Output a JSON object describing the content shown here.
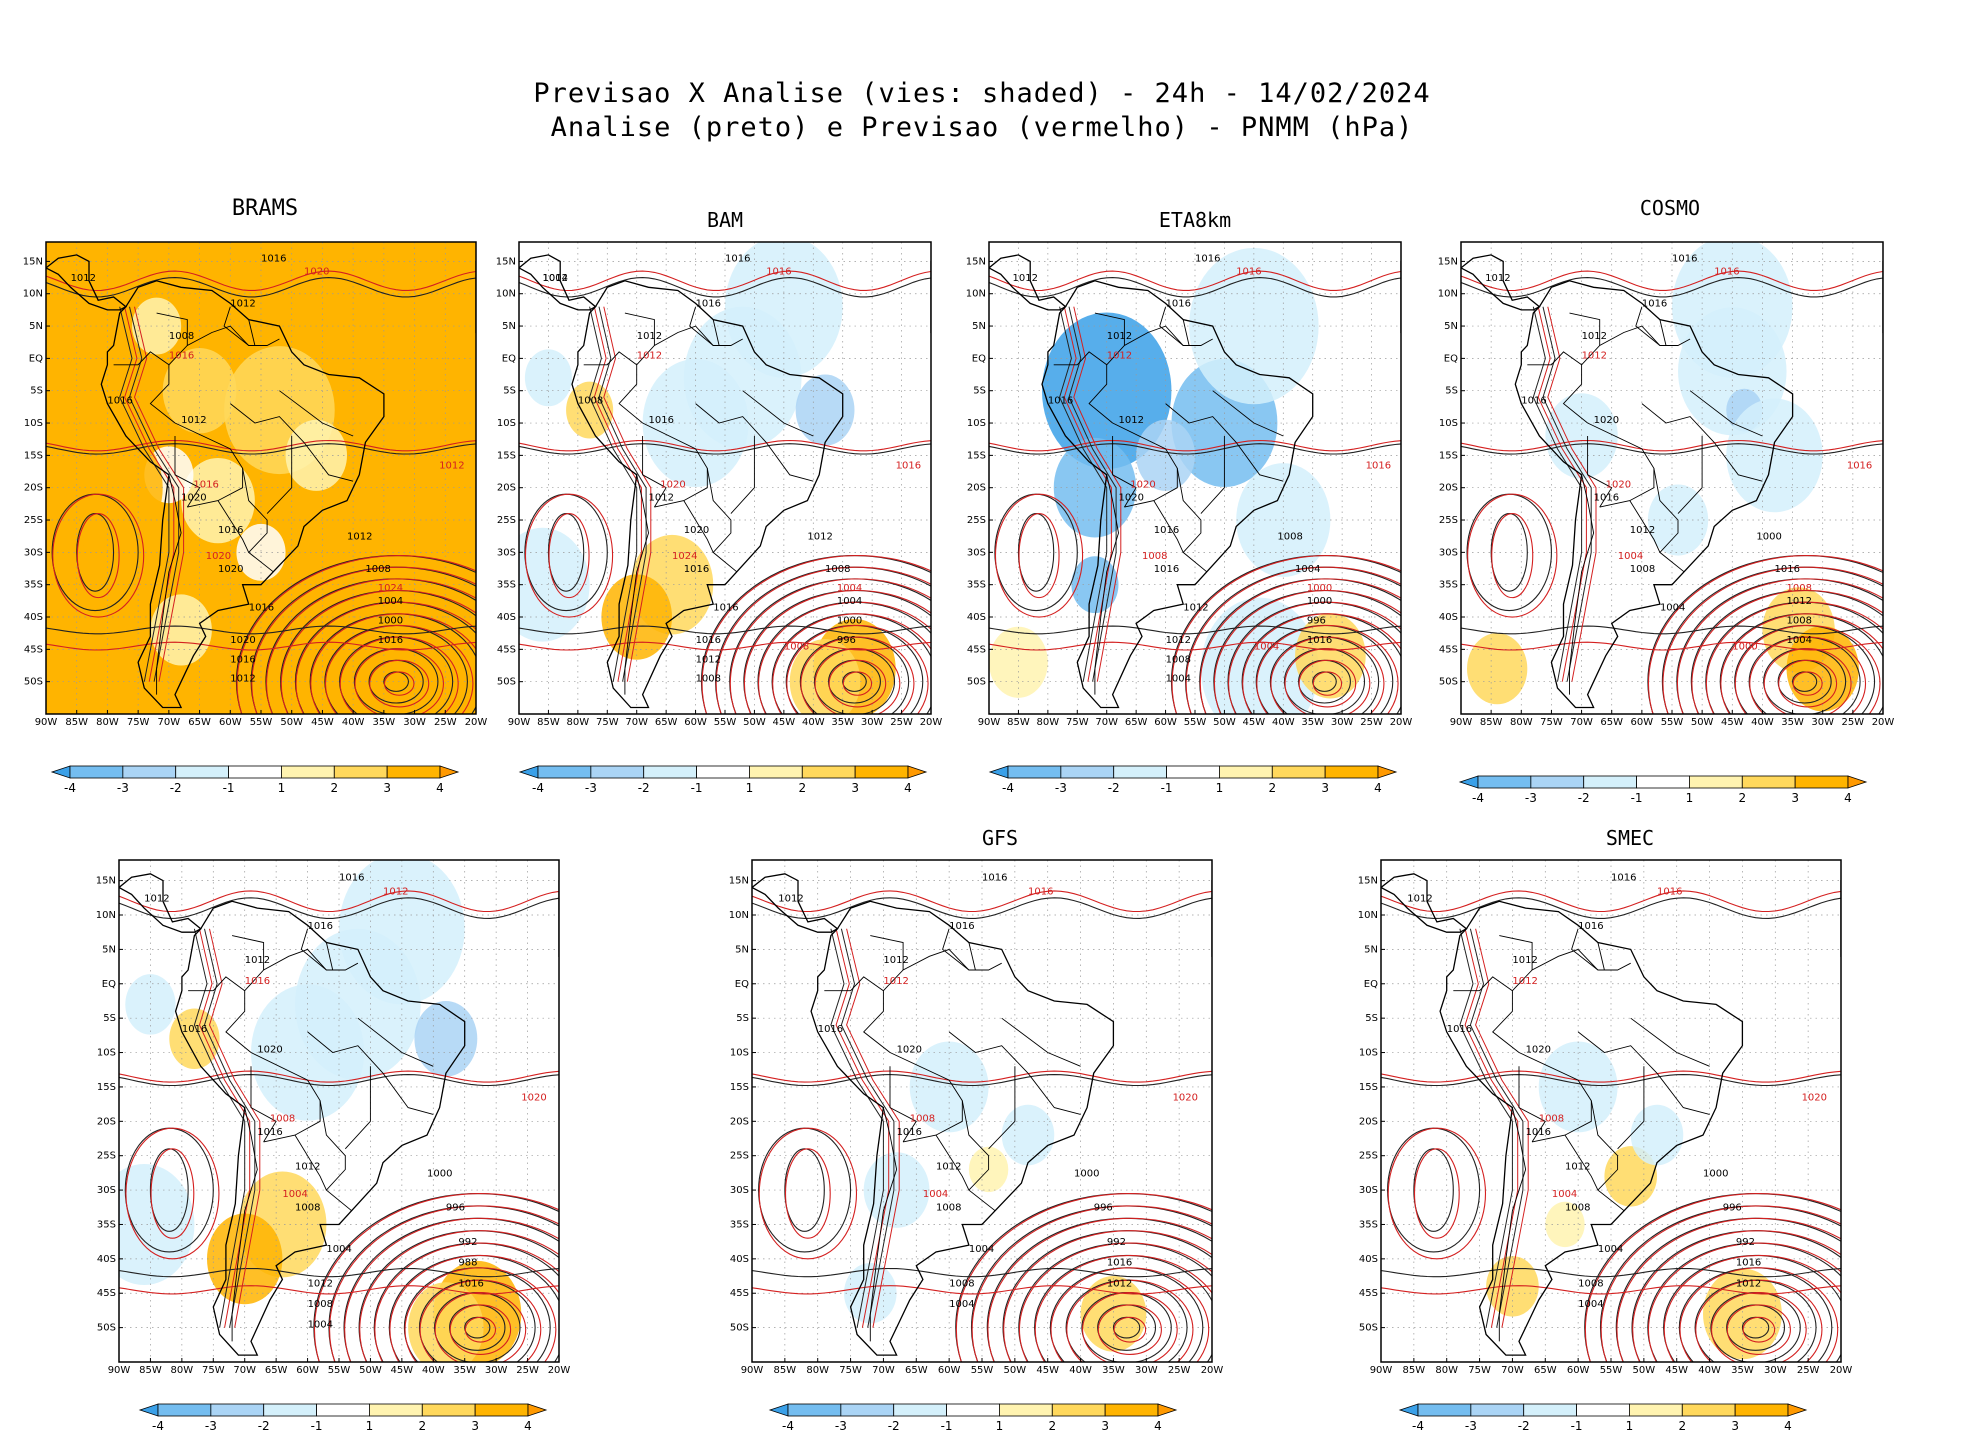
{
  "title": {
    "line1": "Previsao X Analise (vies: shaded) - 24h - 14/02/2024",
    "line2": "Analise (preto) e Previsao (vermelho) - PNMM (hPa)"
  },
  "lat_labels": [
    "15N",
    "10N",
    "5N",
    "EQ",
    "5S",
    "10S",
    "15S",
    "20S",
    "25S",
    "30S",
    "35S",
    "40S",
    "45S",
    "50S"
  ],
  "lon_labels": [
    "90W",
    "85W",
    "80W",
    "75W",
    "70W",
    "65W",
    "60W",
    "55W",
    "50W",
    "45W",
    "40W",
    "35W",
    "30W",
    "25W",
    "20W"
  ],
  "colorbar": {
    "labels": [
      "-4",
      "-3",
      "-2",
      "-1",
      "1",
      "2",
      "3",
      "4"
    ],
    "colors": [
      "#3aa0e8",
      "#74bdf0",
      "#aad4f5",
      "#d4f0fb",
      "#ffffff",
      "#fff3b0",
      "#ffd85c",
      "#ffb400",
      "#ff9900"
    ]
  },
  "panels": [
    {
      "id": "brams",
      "name": "BRAMS",
      "bias": "warm-strong",
      "labels_black": [
        "1012",
        "1016",
        "1012",
        "1008",
        "1016",
        "1012",
        "1020",
        "1016",
        "1020",
        "1016",
        "1012",
        "1008",
        "1004",
        "1000",
        "1016",
        "1020",
        "1016",
        "1012"
      ],
      "labels_red": [
        "1020",
        "1016",
        "1012",
        "1016",
        "1020",
        "1024"
      ]
    },
    {
      "id": "bam",
      "name": "BAM",
      "bias": "mixed",
      "labels_black": [
        "1012",
        "1016",
        "1016",
        "1012",
        "1008",
        "1016",
        "1012",
        "1020",
        "1016",
        "1016",
        "1012",
        "1008",
        "1004",
        "1000",
        "996",
        "1016",
        "1012",
        "1008",
        "1004"
      ],
      "labels_red": [
        "1016",
        "1012",
        "1016",
        "1020",
        "1024",
        "1004",
        "1008"
      ]
    },
    {
      "id": "eta8km",
      "name": "ETA8km",
      "bias": "cold",
      "labels_black": [
        "1012",
        "1016",
        "1016",
        "1012",
        "1016",
        "1012",
        "1020",
        "1016",
        "1016",
        "1012",
        "1008",
        "1004",
        "1000",
        "996",
        "1016",
        "1012",
        "1008",
        "1004"
      ],
      "labels_red": [
        "1016",
        "1012",
        "1016",
        "1020",
        "1008",
        "1000",
        "1004"
      ]
    },
    {
      "id": "cosmo",
      "name": "COSMO",
      "bias": "mixed-light",
      "labels_black": [
        "1012",
        "1016",
        "1016",
        "1012",
        "1016",
        "1020",
        "1016",
        "1012",
        "1008",
        "1004",
        "1000",
        "1016",
        "1012",
        "1008",
        "1004"
      ],
      "labels_red": [
        "1016",
        "1012",
        "1016",
        "1020",
        "1004",
        "1008",
        "1000"
      ]
    },
    {
      "id": "panel5",
      "name": "",
      "bias": "mixed",
      "labels_black": [
        "1012",
        "1016",
        "1016",
        "1012",
        "1016",
        "1020",
        "1016",
        "1012",
        "1008",
        "1004",
        "1000",
        "996",
        "992",
        "988",
        "1016",
        "1012",
        "1008",
        "1004"
      ],
      "labels_red": [
        "1012",
        "1016",
        "1020",
        "1008",
        "1004"
      ]
    },
    {
      "id": "gfs",
      "name": "GFS",
      "bias": "light",
      "labels_black": [
        "1012",
        "1016",
        "1016",
        "1012",
        "1016",
        "1020",
        "1016",
        "1012",
        "1008",
        "1004",
        "1000",
        "996",
        "992",
        "1016",
        "1012",
        "1008",
        "1004"
      ],
      "labels_red": [
        "1016",
        "1012",
        "1020",
        "1008",
        "1004"
      ]
    },
    {
      "id": "smec",
      "name": "SMEC",
      "bias": "light-warm",
      "labels_black": [
        "1012",
        "1016",
        "1016",
        "1012",
        "1016",
        "1020",
        "1016",
        "1012",
        "1008",
        "1004",
        "1000",
        "996",
        "992",
        "1016",
        "1012",
        "1008",
        "1004"
      ],
      "labels_red": [
        "1016",
        "1012",
        "1020",
        "1008",
        "1004"
      ]
    }
  ]
}
